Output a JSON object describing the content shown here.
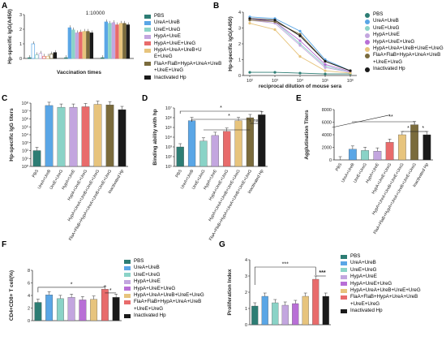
{
  "panel_labels": [
    "A",
    "B",
    "C",
    "D",
    "E",
    "F",
    "G"
  ],
  "colors": [
    "#2d7d74",
    "#5aa6e6",
    "#8ad3c7",
    "#c3a6df",
    "#e86b6b",
    "#e7c47d",
    "#7a6b3c",
    "#1a1a1a",
    "#b86fd6"
  ],
  "chart_data": [
    {
      "id": "A",
      "type": "bar",
      "title": "1:10000",
      "xlabel": "Vaccination times",
      "ylabel": "Hp-specific IgG(A450)",
      "ylim": [
        0,
        3
      ],
      "yticks": [
        "0",
        "1",
        "2",
        "3"
      ],
      "series": [
        {
          "name": "PBS",
          "values": [
            0.05,
            0.05,
            0.05
          ]
        },
        {
          "name": "UreA+UreB",
          "values": [
            1.0,
            2.1,
            2.5
          ]
        },
        {
          "name": "UreE+UreG",
          "values": [
            0.25,
            1.95,
            2.4
          ]
        },
        {
          "name": "HypA+UreE",
          "values": [
            0.35,
            1.75,
            2.45
          ]
        },
        {
          "name": "HypA+UreE+UreG",
          "values": [
            0.15,
            1.8,
            2.3
          ]
        },
        {
          "name": "HypA+UreA+UreB+UreE+UreG",
          "values": [
            0.15,
            1.85,
            2.4
          ]
        },
        {
          "name": "FlaA+FlaB+HypA+UreA+UreB+UreE+UreG",
          "values": [
            0.3,
            1.85,
            2.4
          ]
        },
        {
          "name": "Inactivated Hp",
          "values": [
            0.4,
            1.75,
            2.3
          ]
        }
      ]
    },
    {
      "id": "B",
      "type": "line",
      "xlabel": "reciprocal dilution of mouse sera",
      "ylabel": "Hp-specific IgG(A450)",
      "xticks": [
        "10²",
        "10³",
        "10⁴",
        "10⁵",
        "10⁶"
      ],
      "yticks": [
        "0",
        "1",
        "2",
        "3",
        "4"
      ],
      "x": [
        2,
        3,
        4,
        5,
        6
      ],
      "series": [
        {
          "name": "PBS",
          "values": [
            0.2,
            0.2,
            0.15,
            0.1,
            0.1
          ]
        },
        {
          "name": "UreA+UreB",
          "values": [
            3.7,
            3.6,
            2.8,
            1.0,
            0.3
          ]
        },
        {
          "name": "UreE+UreG",
          "values": [
            3.6,
            3.4,
            2.0,
            0.6,
            0.2
          ]
        },
        {
          "name": "HypA+UreE",
          "values": [
            3.5,
            3.3,
            1.9,
            0.5,
            0.2
          ]
        },
        {
          "name": "HypA+UreE+UreG",
          "values": [
            3.6,
            3.4,
            2.2,
            0.7,
            0.25
          ]
        },
        {
          "name": "HypA+UreA+UreB+UreE+UreG",
          "values": [
            3.3,
            2.9,
            1.2,
            0.3,
            0.15
          ]
        },
        {
          "name": "FlaA+FlaB+HypA+UreA+UreB+UreE+UreG",
          "values": [
            3.5,
            3.4,
            2.6,
            0.9,
            0.3
          ]
        },
        {
          "name": "Inactivated Hp",
          "values": [
            3.6,
            3.5,
            2.5,
            0.9,
            0.3
          ]
        }
      ]
    },
    {
      "id": "C",
      "type": "bar",
      "ylabel": "Hp-specific IgG titers",
      "yticks": [
        "10⁰",
        "10¹",
        "10²",
        "10³",
        "10⁴",
        "10⁵",
        "10⁶",
        "10⁷",
        "10⁸"
      ],
      "categories": [
        "PBS",
        "UreA+UreB",
        "UreE+UreG",
        "HypA+UreE",
        "HypA+UreE+UreG",
        "HypA+UreA+UreB+UreE+UreG",
        "FlaA+FlaB+HypA+UreA+UreB+UreE+UreG",
        "Inactivated Hp"
      ],
      "values": [
        100,
        50000000,
        30000000,
        30000000,
        35000000,
        70000000,
        60000000,
        15000000
      ]
    },
    {
      "id": "D",
      "type": "bar",
      "ylabel": "Binding ability with hp",
      "yticks": [
        "10¹",
        "10²",
        "10³",
        "10⁴",
        "10⁵",
        "10⁶",
        "10⁷"
      ],
      "categories": [
        "PBS",
        "UreA+UreB",
        "UreE+UreG",
        "HypA+UreE",
        "HypA+UreE+UreG",
        "HypA+UreA+UreB+UreE+UreG",
        "FlaA+FlaB+HypA+UreA+UreB+UreE+UreG",
        "Inactivated Hp"
      ],
      "values": [
        1000,
        500000,
        4000,
        15000,
        40000,
        500000,
        1000000,
        2000000
      ],
      "annotations": [
        "*",
        "*",
        "ns"
      ]
    },
    {
      "id": "E",
      "type": "bar",
      "ylabel": "Agglutination Titers",
      "ylim": [
        0,
        8000
      ],
      "yticks": [
        "0",
        "2000",
        "4000",
        "6000",
        "8000"
      ],
      "categories": [
        "PBS",
        "UreA+UreB",
        "UreE+UreG",
        "HypA+UreE",
        "HypA+UreE+UreG",
        "HypA+UreA+UreB+UreE+UreG",
        "FlaA+FlaB+HypA+UreA+UreB+UreE+UreG",
        "Inactivated Hp"
      ],
      "values": [
        0,
        1700,
        1500,
        1400,
        2800,
        4000,
        5600,
        4000
      ],
      "annotations": [
        "**",
        "*",
        "*"
      ]
    },
    {
      "id": "F",
      "type": "bar",
      "ylabel": "CD4+CD8+ T cell(%)",
      "ylim": [
        0,
        8
      ],
      "yticks": [
        "0",
        "2",
        "4",
        "6",
        "8"
      ],
      "categories": [
        "PBS",
        "UreA+UreB",
        "UreE+UreG",
        "HypA+UreE",
        "HypA+UreE+UreG",
        "HypA+UreA+UreB+UreE+UreG",
        "FlaA+FlaB+HypA+UreA+UreB+UreE+UreG",
        "Inactivated Hp"
      ],
      "values": [
        2.9,
        4.1,
        3.5,
        3.7,
        3.3,
        3.4,
        5.0,
        3.7
      ],
      "annotations": [
        "*",
        "*"
      ],
      "legend": [
        {
          "name": "PBS",
          "color": "#2d7d74"
        },
        {
          "name": "UreA+UreB",
          "color": "#5aa6e6"
        },
        {
          "name": "UreE+UreG",
          "color": "#8ad3c7"
        },
        {
          "name": "HypA+UreE",
          "color": "#c3a6df"
        },
        {
          "name": "HypA+UreE+UreG",
          "color": "#b86fd6"
        },
        {
          "name": "HypA+UreA+UreB+UreE+UreG",
          "color": "#e7c47d"
        },
        {
          "name": "FlaA+FlaB+HypA+UreA+UreB+UreE+UreG",
          "color": "#e86b6b"
        },
        {
          "name": "Inactivated Hp",
          "color": "#1a1a1a"
        }
      ]
    },
    {
      "id": "G",
      "type": "bar",
      "ylabel": "Proliferation Index",
      "ylim": [
        0,
        4
      ],
      "yticks": [
        "0",
        "1",
        "2",
        "3",
        "4"
      ],
      "categories": [
        "PBS",
        "UreA+UreB",
        "UreE+UreG",
        "HypA+UreE",
        "HypA+UreE+UreG",
        "HypA+UreA+UreB+UreE+UreG",
        "FlaA+FlaB+HypA+UreA+UreB+UreE+UreG",
        "Inactivated Hp"
      ],
      "values": [
        1.15,
        1.75,
        1.35,
        1.2,
        1.3,
        1.75,
        2.8,
        1.75
      ],
      "annotations": [
        "***",
        "***"
      ]
    }
  ],
  "legend_A": [
    "PBS",
    "UreA+UreB",
    "UreE+UreG",
    "HypA+UreE",
    "HypA+UreE+UreG",
    "HypA+UreA+UreB+U\nE+UreG",
    "FlaA+FlaB+HypA+UreA+UreB\n+UreE+UreG",
    "Inactivated Hp"
  ],
  "legend_B": [
    "PBS",
    "UreA+UreB",
    "UreE+UreG",
    "HypA+UreE",
    "HypA+UreE+UreG",
    "HypA+UreA+UreB+UreE+UreG",
    "FlaA+FlaB+HypA+UreA+UreB\n+UreE+UreG",
    "Inactivated Hp"
  ],
  "legend_F": [
    "PBS",
    "UreA+UreB",
    "UreE+UreG",
    "HypA+UreE",
    "HypA+UreE+UreG",
    "HypA+UreA+UreB+UreE+UreG",
    "FlaA+FlaB+HypA+UreA+UreB\n+UreE+UreG",
    "Inactivated Hp"
  ],
  "legend_G": [
    "PBS",
    "UreA+UreB",
    "UreE+UreG",
    "HypA+UreE",
    "HypA+UreE+UreG",
    "HypA+UreA+UreB+UreE+UreG",
    "FlaA+FlaB+HypA+UreA+UreB\n+UreE+UreG",
    "Inactivated Hp"
  ]
}
